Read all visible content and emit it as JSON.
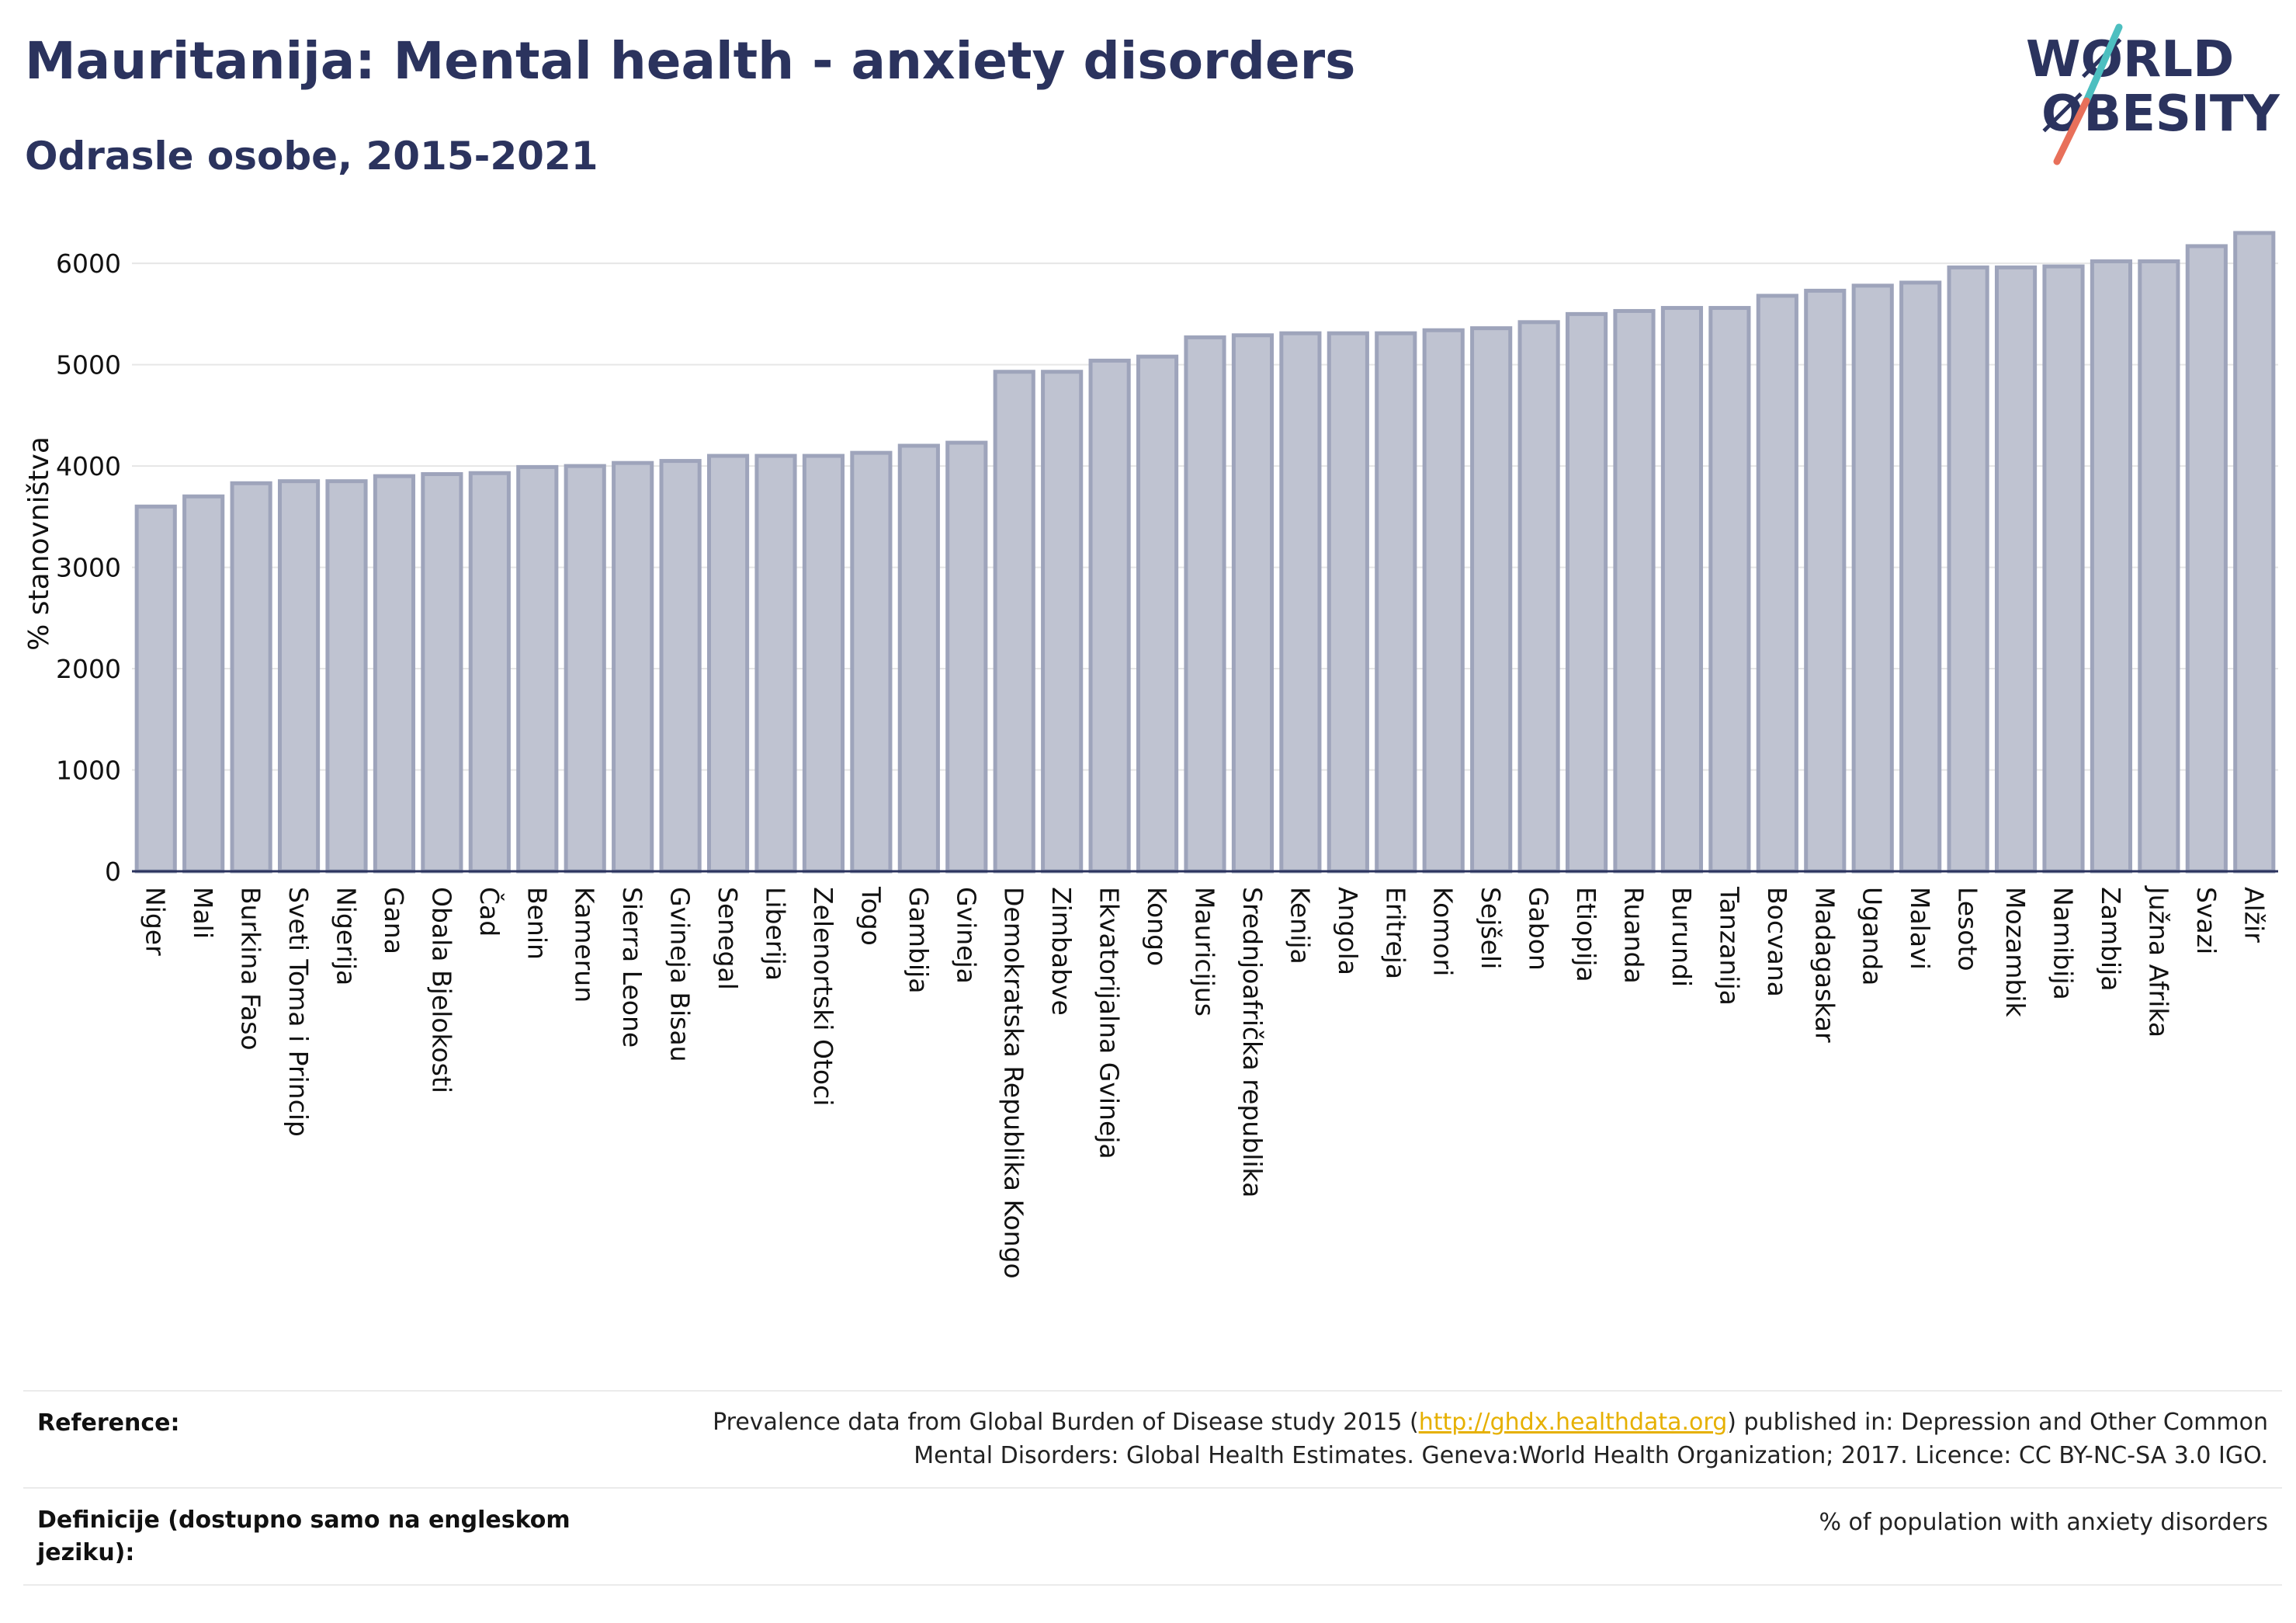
{
  "title": "Mauritanija: Mental health - anxiety disorders",
  "subtitle": "Odrasle osobe, 2015-2021",
  "logo": {
    "line1": "WØRLD",
    "line2": "ØBESITY",
    "text_color": "#2b335e",
    "slash_colors": [
      "#4dbfc0",
      "#e8705a"
    ]
  },
  "colors": {
    "bar_fill": "#bfc3d1",
    "bar_stroke": "#9ea4bb",
    "title": "#2b335e",
    "link": "#e6b000"
  },
  "chart_data": {
    "type": "bar",
    "title": "Mauritanija: Mental health - anxiety disorders",
    "subtitle": "Odrasle osobe, 2015-2021",
    "ylabel": "% stanovništva",
    "xlabel": "",
    "ylim": [
      0,
      6300
    ],
    "yticks": [
      0,
      1000,
      2000,
      3000,
      4000,
      5000,
      6000
    ],
    "grid": true,
    "categories": [
      "Niger",
      "Mali",
      "Burkina Faso",
      "Sveti Toma i Princip",
      "Nigerija",
      "Gana",
      "Obala Bjelokosti",
      "Čad",
      "Benin",
      "Kamerun",
      "Sierra Leone",
      "Gvineja Bisau",
      "Senegal",
      "Liberija",
      "Zelenortski Otoci",
      "Togo",
      "Gambija",
      "Gvineja",
      "Demokratska Republika Kongo",
      "Zimbabve",
      "Ekvatorijalna Gvineja",
      "Kongo",
      "Mauricijus",
      "Srednjoafrička republika",
      "Kenija",
      "Angola",
      "Eritreja",
      "Komori",
      "Sejšeli",
      "Gabon",
      "Etiopija",
      "Ruanda",
      "Burundi",
      "Tanzanija",
      "Bocvana",
      "Madagaskar",
      "Uganda",
      "Malavi",
      "Lesoto",
      "Mozambik",
      "Namibija",
      "Zambija",
      "Južna Afrika",
      "Svazi",
      "Alžir"
    ],
    "values": [
      3600,
      3700,
      3830,
      3850,
      3850,
      3900,
      3920,
      3930,
      3990,
      4000,
      4030,
      4050,
      4100,
      4100,
      4100,
      4130,
      4200,
      4230,
      4930,
      4930,
      5040,
      5080,
      5270,
      5290,
      5310,
      5310,
      5310,
      5340,
      5360,
      5420,
      5500,
      5530,
      5560,
      5560,
      5680,
      5730,
      5780,
      5810,
      5960,
      5960,
      5970,
      6020,
      6020,
      6170,
      6300
    ]
  },
  "footer": {
    "reference_label": "Reference:",
    "reference_text_1": "Prevalence data from Global Burden of Disease study 2015 (",
    "reference_link": "http://ghdx.healthdata.org",
    "reference_text_2": ") published in: Depression and Other Common",
    "reference_text_3": "Mental Disorders: Global Health Estimates. Geneva:World Health Organization; 2017. Licence: CC BY-NC-SA 3.0 IGO.",
    "definition_label": "Definicije (dostupno samo na engleskom jeziku):",
    "definition_text": "% of population with anxiety disorders"
  }
}
